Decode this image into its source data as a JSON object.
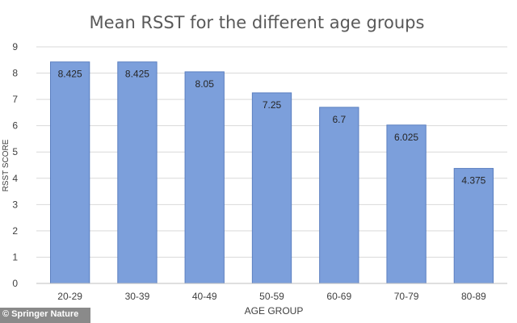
{
  "credit": "© Springer Nature",
  "chart_data": {
    "type": "bar",
    "title": "Mean RSST for the different age groups",
    "xlabel": "AGE GROUP",
    "ylabel": "RSST SCORE",
    "categories": [
      "20-29",
      "30-39",
      "40-49",
      "50-59",
      "60-69",
      "70-79",
      "80-89"
    ],
    "values": [
      8.425,
      8.425,
      8.05,
      7.25,
      6.7,
      6.025,
      4.375
    ],
    "data_labels": [
      "8.425",
      "8.425",
      "8.05",
      "7.25",
      "6.7",
      "6.025",
      "4.375"
    ],
    "ylim": [
      0,
      9
    ],
    "yticks": [
      0,
      1,
      2,
      3,
      4,
      5,
      6,
      7,
      8,
      9
    ],
    "grid": true,
    "bar_color": "#7c9fdb",
    "bar_edge_color": "#5b7fc0"
  }
}
